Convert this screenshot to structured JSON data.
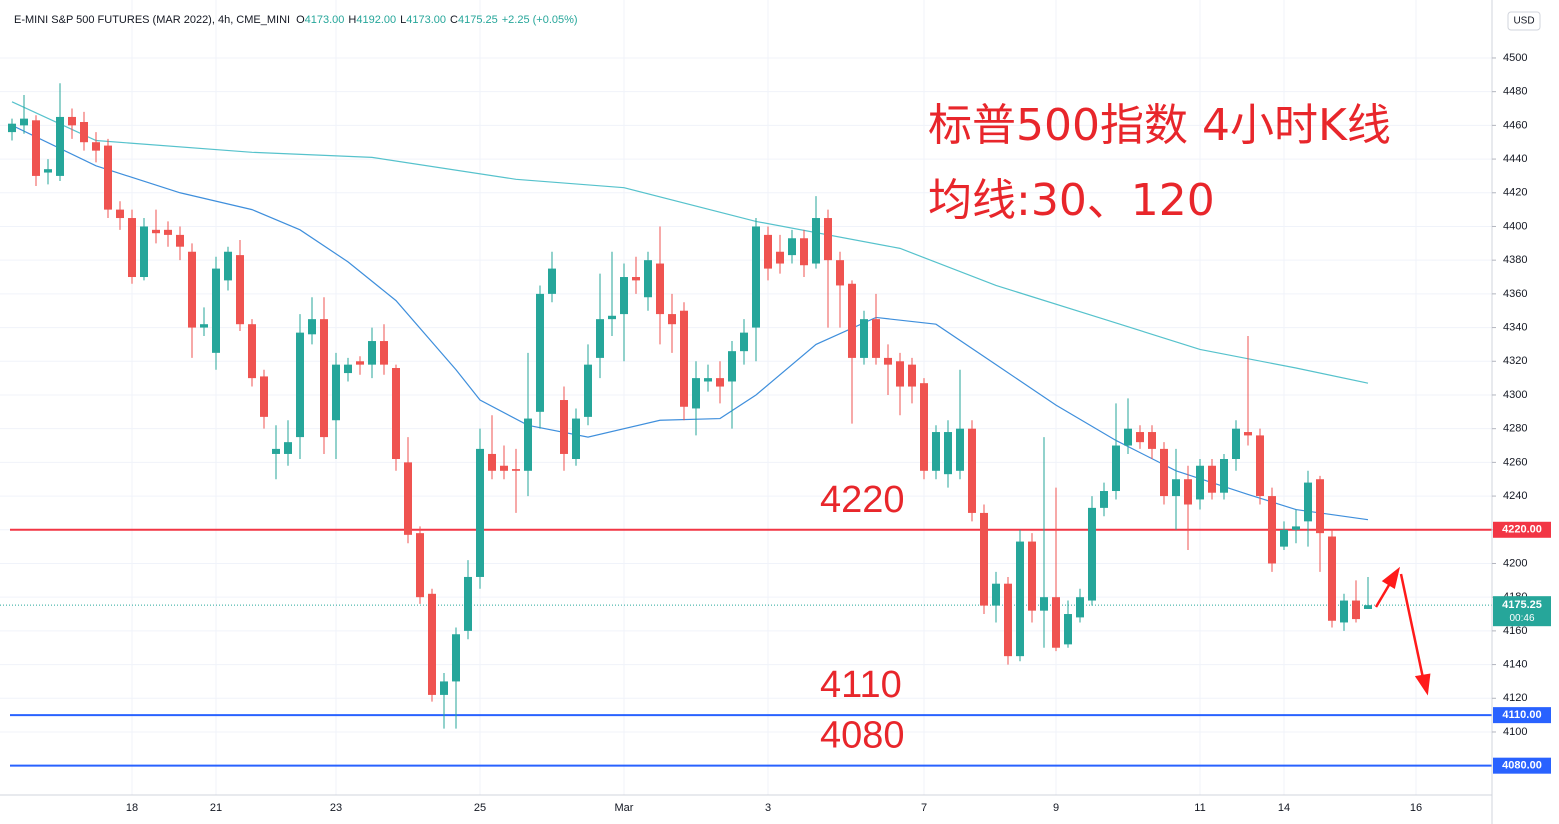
{
  "header": {
    "symbol": "E-MINI S&P 500 FUTURES (MAR 2022), 4h, CME_MINI",
    "ohlc": [
      {
        "key": "O",
        "value": "4173.00"
      },
      {
        "key": "H",
        "value": "4192.00"
      },
      {
        "key": "L",
        "value": "4173.00"
      },
      {
        "key": "C",
        "value": "4175.25"
      }
    ],
    "change": "+2.25 (+0.05%)",
    "currency": "USD"
  },
  "chart_data": {
    "type": "candlestick",
    "title": "标普500指数 4小时K线",
    "subtitle": "均线:30、120",
    "up_color": "#26a69a",
    "down_color": "#ef5350",
    "categories": [
      null,
      null,
      null,
      null,
      null,
      null,
      null,
      null,
      null,
      null,
      "18",
      null,
      null,
      null,
      null,
      null,
      null,
      "21",
      null,
      null,
      null,
      null,
      null,
      null,
      null,
      null,
      null,
      "23",
      null,
      null,
      null,
      null,
      null,
      null,
      null,
      null,
      null,
      null,
      null,
      "25",
      null,
      null,
      null,
      null,
      null,
      null,
      null,
      null,
      null,
      null,
      null,
      "Mar",
      null,
      null,
      null,
      null,
      null,
      null,
      null,
      null,
      null,
      null,
      null,
      "3",
      null,
      null,
      null,
      null,
      null,
      null,
      null,
      null,
      null,
      null,
      null,
      null,
      "7",
      null,
      null,
      null,
      null,
      null,
      null,
      null,
      null,
      null,
      null,
      "9",
      null,
      null,
      null,
      null,
      null,
      null,
      null,
      null,
      null,
      null,
      null,
      "11",
      null,
      null,
      null,
      null,
      null,
      null,
      "14",
      null,
      null,
      null,
      null,
      null,
      null,
      null,
      null,
      null,
      null,
      "16",
      null,
      null,
      null,
      null,
      null,
      null
    ],
    "open": [
      4456,
      4460,
      4463,
      4432,
      4430,
      4465,
      4462,
      4450,
      4448,
      4410,
      4405,
      4370,
      4398,
      4398,
      4395,
      4385,
      4340,
      4325,
      4368,
      4383,
      4342,
      4311,
      4265,
      4265,
      4275,
      4336,
      4345,
      4285,
      4313,
      4320,
      4318,
      4332,
      4316,
      4260,
      4218,
      4182,
      4122,
      4130,
      4160,
      4192,
      4265,
      4258,
      4256,
      4255,
      4290,
      4360,
      4297,
      4262,
      4287,
      4322,
      4345,
      4348,
      4370,
      4358,
      4378,
      4348,
      4350,
      4292,
      4308,
      4310,
      4308,
      4326,
      4340,
      4395,
      4385,
      4383,
      4393,
      4378,
      4405,
      4380,
      4366,
      4322,
      4345,
      4322,
      4320,
      4318,
      4307,
      4255,
      4253,
      4255,
      4280,
      4230,
      4175,
      4188,
      4145,
      4213,
      4172,
      4180,
      4152,
      4168,
      4178,
      4233,
      4243,
      4270,
      4278,
      4278,
      4268,
      4240,
      4250,
      4238,
      4258,
      4242,
      4262,
      4278,
      4276,
      4240,
      4210,
      4220,
      4225,
      4250,
      4216,
      4165,
      4178,
      4173,
      null,
      null,
      null,
      null,
      null,
      null,
      null,
      null,
      null,
      null
    ],
    "high": [
      4464,
      4478,
      4466,
      4440,
      4485,
      4470,
      4468,
      4456,
      4452,
      4415,
      4410,
      4405,
      4410,
      4403,
      4400,
      4390,
      4352,
      4382,
      4388,
      4392,
      4345,
      4315,
      4282,
      4285,
      4348,
      4358,
      4358,
      4325,
      4322,
      4323,
      4340,
      4342,
      4318,
      4275,
      4222,
      4185,
      4135,
      4162,
      4202,
      4280,
      4288,
      4270,
      4268,
      4325,
      4365,
      4385,
      4305,
      4292,
      4330,
      4372,
      4385,
      4378,
      4382,
      4385,
      4400,
      4360,
      4355,
      4320,
      4318,
      4320,
      4332,
      4345,
      4405,
      4400,
      4395,
      4398,
      4398,
      4418,
      4410,
      4385,
      4368,
      4350,
      4360,
      4330,
      4325,
      4322,
      4310,
      4282,
      4285,
      4315,
      4285,
      4235,
      4195,
      4192,
      4220,
      4218,
      4275,
      4245,
      4178,
      4185,
      4240,
      4248,
      4295,
      4298,
      4282,
      4282,
      4272,
      4268,
      4258,
      4262,
      4262,
      4265,
      4285,
      4335,
      4280,
      4245,
      4225,
      4232,
      4255,
      4252,
      4220,
      4182,
      4190,
      4192,
      null,
      null,
      null,
      null,
      null,
      null,
      null,
      null,
      null,
      null
    ],
    "low": [
      4451,
      4455,
      4424,
      4425,
      4427,
      4452,
      4445,
      4438,
      4405,
      4398,
      4366,
      4368,
      4390,
      4388,
      4380,
      4322,
      4335,
      4315,
      4362,
      4338,
      4305,
      4280,
      4250,
      4258,
      4262,
      4330,
      4265,
      4262,
      4308,
      4312,
      4310,
      4312,
      4255,
      4212,
      4176,
      4118,
      4102,
      4102,
      4155,
      4185,
      4250,
      4250,
      4230,
      4240,
      4280,
      4355,
      4255,
      4258,
      4282,
      4310,
      4335,
      4320,
      4360,
      4350,
      4330,
      4325,
      4285,
      4276,
      4302,
      4295,
      4280,
      4318,
      4320,
      4368,
      4372,
      4378,
      4370,
      4375,
      4340,
      4340,
      4283,
      4318,
      4318,
      4300,
      4288,
      4295,
      4250,
      4250,
      4245,
      4250,
      4225,
      4170,
      4165,
      4140,
      4142,
      4165,
      4150,
      4148,
      4150,
      4165,
      4175,
      4228,
      4238,
      4265,
      4268,
      4262,
      4235,
      4220,
      4208,
      4232,
      4238,
      4238,
      4255,
      4270,
      4235,
      4195,
      4208,
      4212,
      4210,
      4195,
      4162,
      4160,
      4165,
      4173,
      null,
      null,
      null,
      null,
      null,
      null,
      null,
      null,
      null,
      null
    ],
    "close": [
      4461,
      4464,
      4430,
      4434,
      4465,
      4460,
      4450,
      4445,
      4410,
      4405,
      4370,
      4400,
      4396,
      4395,
      4388,
      4340,
      4342,
      4375,
      4385,
      4342,
      4310,
      4287,
      4268,
      4272,
      4337,
      4345,
      4275,
      4318,
      4318,
      4318,
      4332,
      4318,
      4262,
      4217,
      4180,
      4122,
      4130,
      4158,
      4192,
      4268,
      4255,
      4255,
      4255,
      4286,
      4360,
      4375,
      4265,
      4286,
      4318,
      4345,
      4347,
      4370,
      4368,
      4380,
      4348,
      4342,
      4293,
      4310,
      4310,
      4305,
      4326,
      4337,
      4400,
      4375,
      4378,
      4393,
      4377,
      4405,
      4380,
      4365,
      4322,
      4345,
      4322,
      4318,
      4305,
      4305,
      4255,
      4278,
      4278,
      4280,
      4230,
      4175,
      4188,
      4145,
      4213,
      4172,
      4180,
      4150,
      4170,
      4180,
      4233,
      4243,
      4270,
      4280,
      4272,
      4268,
      4240,
      4250,
      4235,
      4258,
      4242,
      4262,
      4280,
      4276,
      4240,
      4200,
      4220,
      4222,
      4248,
      4218,
      4166,
      4178,
      4167,
      4175.25,
      null,
      null,
      null,
      null,
      null,
      null,
      null,
      null,
      null,
      null
    ],
    "moving_averages": [
      {
        "color": "#56c2cc",
        "x": [
          0,
          7,
          20,
          30,
          42,
          51,
          62,
          74,
          82,
          91,
          99,
          107,
          113
        ],
        "values": [
          4474,
          4451,
          4444,
          4441,
          4428,
          4423,
          4403,
          4387,
          4365,
          4345,
          4327,
          4316,
          4307
        ]
      },
      {
        "color": "#3f8fdc",
        "x": [
          0,
          7,
          14,
          20,
          24,
          28,
          32,
          37,
          39,
          43,
          48,
          54,
          59,
          62,
          67,
          72,
          77,
          82,
          87,
          92,
          97,
          103,
          107,
          113
        ],
        "values": [
          4460,
          4436,
          4420,
          4410,
          4398,
          4379,
          4356,
          4315,
          4297,
          4282,
          4275,
          4285,
          4286,
          4300,
          4330,
          4346,
          4342,
          4318,
          4294,
          4273,
          4255,
          4241,
          4232,
          4226
        ]
      }
    ],
    "levels": [
      {
        "value": 4220,
        "label": "4220.00",
        "note": "4220",
        "color": "#f23645"
      },
      {
        "value": 4110,
        "label": "4110.00",
        "note": "4110",
        "color": "#2962ff"
      },
      {
        "value": 4080,
        "label": "4080.00",
        "note": "4080",
        "color": "#2962ff"
      }
    ],
    "last_price": {
      "value": 4175.25,
      "label": "4175.25",
      "countdown": "00:46"
    },
    "ylim": [
      4062.6,
      4534.4
    ],
    "yticks": [
      4100,
      4120,
      4140,
      4160,
      4180,
      4200,
      4220,
      4240,
      4260,
      4280,
      4300,
      4320,
      4340,
      4360,
      4380,
      4400,
      4420,
      4440,
      4460,
      4480,
      4500
    ],
    "grid": true
  }
}
